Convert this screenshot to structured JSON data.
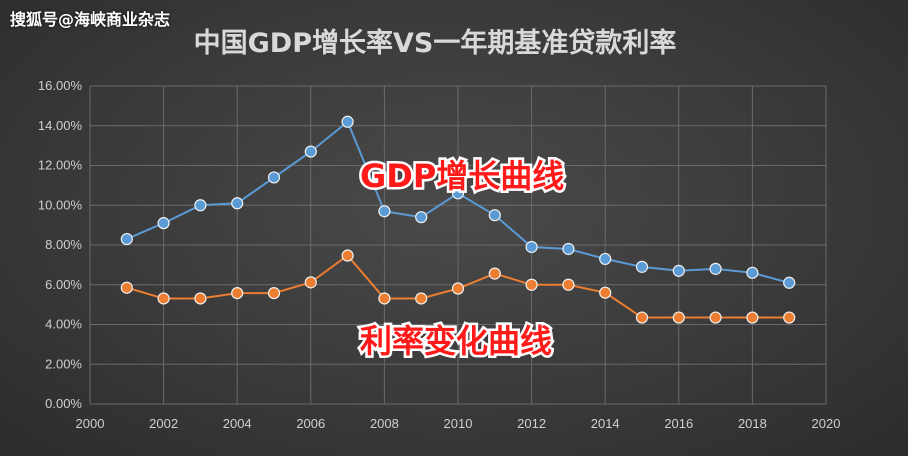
{
  "watermark": "搜狐号@海峡商业杂志",
  "colors": {
    "gdp": "#5b9bd5",
    "rate": "#ed7d31",
    "annotation": "#ff1a1a"
  },
  "chart_data": {
    "type": "line",
    "title": "中国GDP增长率VS一年期基准贷款利率",
    "x_ticks": [
      2000,
      2002,
      2004,
      2006,
      2008,
      2010,
      2012,
      2014,
      2016,
      2018,
      2020
    ],
    "y_ticks": [
      "0.00%",
      "2.00%",
      "4.00%",
      "6.00%",
      "8.00%",
      "10.00%",
      "12.00%",
      "14.00%",
      "16.00%"
    ],
    "xlim": [
      2000,
      2020
    ],
    "ylim": [
      0,
      16
    ],
    "grid": true,
    "series": [
      {
        "key": "gdp",
        "x": [
          2001,
          2002,
          2003,
          2004,
          2005,
          2006,
          2007,
          2008,
          2009,
          2010,
          2011,
          2012,
          2013,
          2014,
          2015,
          2016,
          2017,
          2018,
          2019
        ],
        "values": [
          8.3,
          9.1,
          10.0,
          10.1,
          11.4,
          12.7,
          14.2,
          9.7,
          9.4,
          10.6,
          9.5,
          7.9,
          7.8,
          7.3,
          6.9,
          6.7,
          6.8,
          6.6,
          6.1
        ]
      },
      {
        "key": "rate",
        "x": [
          2001,
          2002,
          2003,
          2004,
          2005,
          2006,
          2007,
          2008,
          2009,
          2010,
          2011,
          2012,
          2013,
          2014,
          2015,
          2016,
          2017,
          2018,
          2019
        ],
        "values": [
          5.85,
          5.31,
          5.31,
          5.58,
          5.58,
          6.12,
          7.47,
          5.31,
          5.31,
          5.81,
          6.56,
          6.0,
          6.0,
          5.6,
          4.35,
          4.35,
          4.35,
          4.35,
          4.35
        ]
      }
    ],
    "annotations": [
      {
        "text": "GDP增长曲线",
        "series": "gdp"
      },
      {
        "text": "利率变化曲线",
        "series": "rate"
      }
    ]
  }
}
